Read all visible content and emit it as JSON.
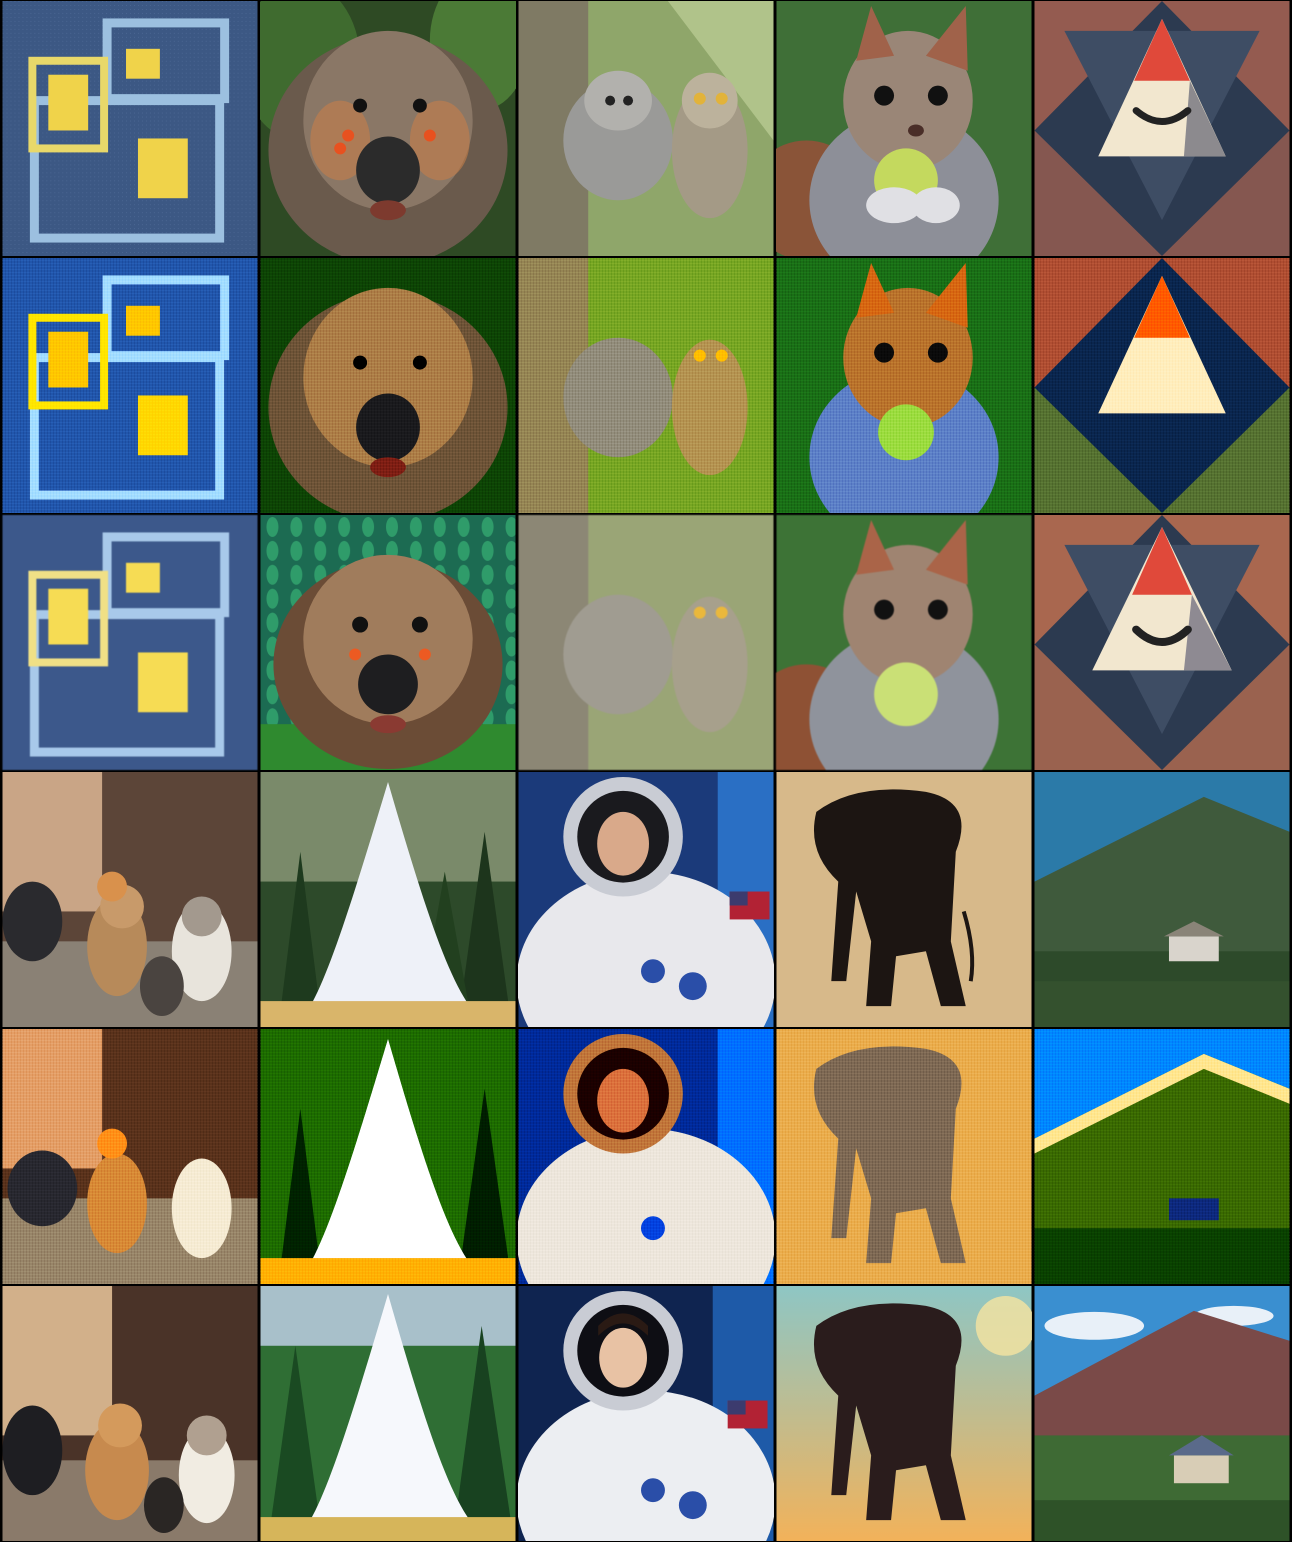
{
  "grid": {
    "rows": 6,
    "columns": 5,
    "row_groups": [
      {
        "variant": "source"
      },
      {
        "variant": "degraded"
      },
      {
        "variant": "stylized"
      },
      {
        "variant": "source"
      },
      {
        "variant": "degraded"
      },
      {
        "variant": "stylized"
      }
    ]
  },
  "subjects": {
    "top_block": [
      "boxes-on-carpet",
      "wombat",
      "owls-on-tree",
      "squirrel-with-apple",
      "geometric-triangle-face"
    ],
    "bottom_block": [
      "cats-group",
      "geyser",
      "astronaut",
      "elephant-silhouette",
      "mountain-house"
    ]
  },
  "colors": {
    "background": "#000000",
    "carpet_blue": "#3e5a86",
    "box_blue": "#9cc0e0",
    "box_yellow": "#f0d34a",
    "forest_green": "#2f5a2a",
    "sky_blue": "#1f6fb3",
    "sand": "#d7b98a",
    "triangle_red": "#e0493a",
    "triangle_cream": "#f2e7cf",
    "navy": "#2c3a50"
  }
}
